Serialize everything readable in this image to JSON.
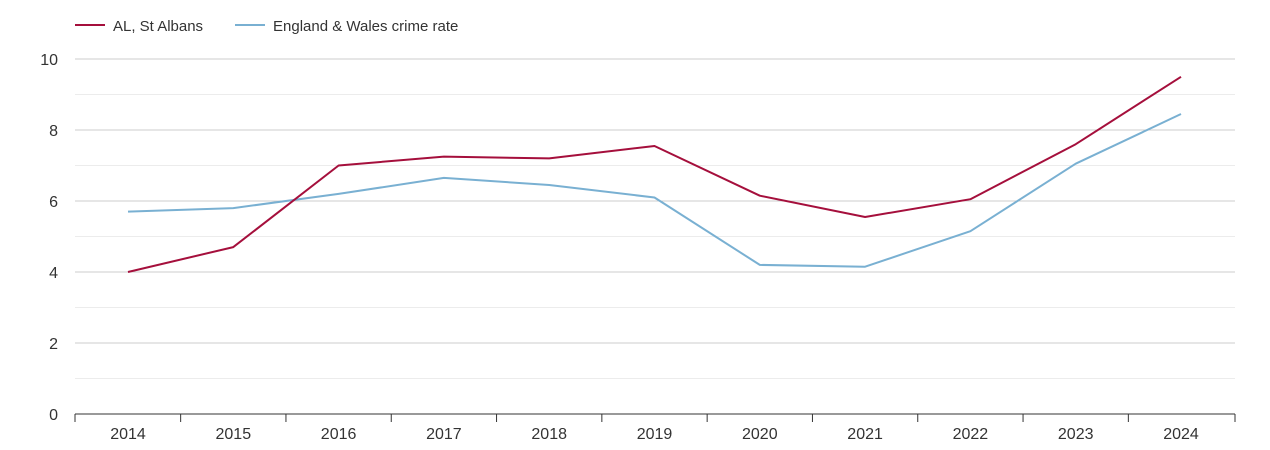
{
  "chart_data": {
    "type": "line",
    "title": "",
    "xlabel": "",
    "ylabel": "",
    "x": [
      "2014",
      "2015",
      "2016",
      "2017",
      "2018",
      "2019",
      "2020",
      "2021",
      "2022",
      "2023",
      "2024"
    ],
    "ylim": [
      0,
      10
    ],
    "yticks": [
      0,
      2,
      4,
      6,
      8,
      10
    ],
    "grid": true,
    "legend_position": "top-left",
    "series": [
      {
        "name": "AL, St Albans",
        "color": "#a50f3c",
        "values": [
          4.0,
          4.7,
          7.0,
          7.25,
          7.2,
          7.55,
          6.15,
          5.55,
          6.05,
          7.6,
          9.5
        ]
      },
      {
        "name": "England & Wales crime rate",
        "color": "#79b0d2",
        "values": [
          5.7,
          5.8,
          6.2,
          6.65,
          6.45,
          6.1,
          4.2,
          4.15,
          5.15,
          7.05,
          8.45
        ]
      }
    ]
  }
}
